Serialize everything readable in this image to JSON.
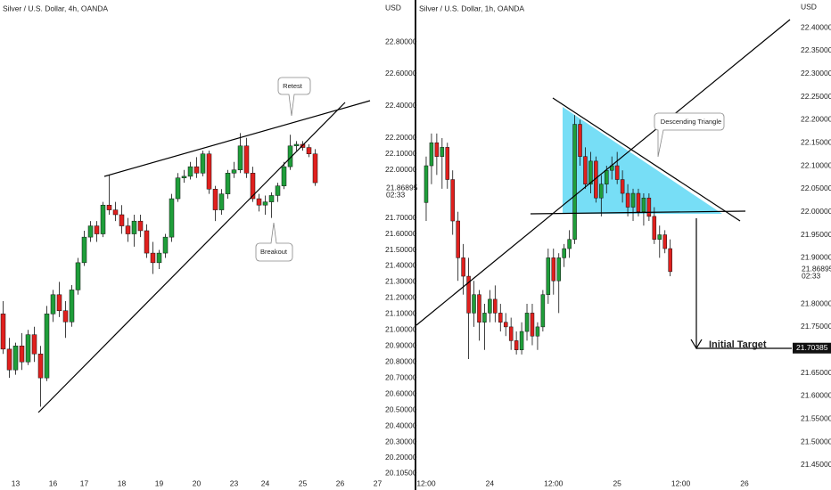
{
  "chart_data": [
    {
      "type": "candlestick",
      "title": "Silver / U.S. Dollar, 4h, OANDA",
      "y_label": "USD",
      "up_color": "#1f9e3a",
      "down_color": "#e0201e",
      "grid": false,
      "ylim": [
        20.055,
        23.062
      ],
      "yticks": [
        {
          "value": 22.8,
          "label": "22.80000"
        },
        {
          "value": 22.6,
          "label": "22.60000"
        },
        {
          "value": 22.4,
          "label": "22.40000"
        },
        {
          "value": 22.2,
          "label": "22.20000"
        },
        {
          "value": 22.1,
          "label": "22.10000"
        },
        {
          "value": 22.0,
          "label": "22.00000"
        },
        {
          "value": 21.7,
          "label": "21.70000"
        },
        {
          "value": 21.6,
          "label": "21.60000"
        },
        {
          "value": 21.5,
          "label": "21.50000"
        },
        {
          "value": 21.4,
          "label": "21.40000"
        },
        {
          "value": 21.3,
          "label": "21.30000"
        },
        {
          "value": 21.2,
          "label": "21.20000"
        },
        {
          "value": 21.1,
          "label": "21.10000"
        },
        {
          "value": 21.0,
          "label": "21.00000"
        },
        {
          "value": 20.9,
          "label": "20.90000"
        },
        {
          "value": 20.8,
          "label": "20.80000"
        },
        {
          "value": 20.7,
          "label": "20.70000"
        },
        {
          "value": 20.6,
          "label": "20.60000"
        },
        {
          "value": 20.5,
          "label": "20.50000"
        },
        {
          "value": 20.4,
          "label": "20.40000"
        },
        {
          "value": 20.3,
          "label": "20.30000"
        },
        {
          "value": 20.2,
          "label": "20.20000"
        },
        {
          "value": 20.105,
          "label": "20.10500"
        }
      ],
      "last_price": 21.86895,
      "countdown": "02:33",
      "annotations": [
        "Retest",
        "Breakout"
      ],
      "categories": [
        null,
        null,
        "13",
        null,
        null,
        null,
        null,
        null,
        "16",
        null,
        null,
        null,
        null,
        "17",
        null,
        null,
        null,
        null,
        null,
        "18",
        null,
        null,
        null,
        null,
        null,
        "19",
        null,
        null,
        null,
        null,
        null,
        "20",
        null,
        null,
        null,
        null,
        null,
        "23",
        null,
        null,
        null,
        null,
        "24",
        null,
        null,
        null,
        null,
        null,
        "25",
        null,
        null,
        null,
        null,
        null,
        "26",
        null,
        null,
        null,
        null,
        null,
        "27"
      ],
      "open": [
        21.1,
        20.88,
        20.75,
        20.9,
        20.8,
        20.97,
        20.85,
        20.7,
        21.1,
        21.22,
        21.12,
        21.05,
        21.25,
        21.42,
        21.58,
        21.65,
        21.6,
        21.78,
        21.75,
        21.72,
        21.65,
        21.6,
        21.68,
        21.62,
        21.48,
        21.42,
        21.48,
        21.58,
        21.82,
        21.95,
        21.96,
        22.02,
        21.98,
        22.1,
        21.88,
        21.75,
        21.85,
        21.98,
        22.0,
        22.15,
        21.98,
        21.82,
        21.78,
        21.8,
        21.84,
        21.9,
        22.02,
        22.15,
        22.16,
        22.14,
        22.1,
        null,
        null,
        null,
        null,
        null,
        null,
        null,
        null,
        null,
        null
      ],
      "high": [
        21.18,
        20.95,
        20.92,
        20.98,
        21.0,
        21.02,
        20.9,
        21.15,
        21.25,
        21.3,
        21.18,
        21.28,
        21.45,
        21.62,
        21.68,
        21.68,
        21.8,
        21.97,
        21.8,
        21.78,
        21.7,
        21.72,
        21.72,
        21.66,
        21.55,
        21.5,
        21.6,
        21.85,
        21.98,
        22.0,
        22.05,
        22.08,
        22.12,
        22.12,
        21.9,
        21.88,
        22.0,
        22.05,
        22.23,
        22.2,
        22.02,
        21.85,
        21.84,
        21.86,
        21.92,
        22.05,
        22.22,
        22.18,
        22.18,
        22.16,
        22.13,
        null,
        null,
        null,
        null,
        null,
        null,
        null,
        null,
        null,
        null
      ],
      "low": [
        20.85,
        20.7,
        20.72,
        20.75,
        20.78,
        20.8,
        20.52,
        20.68,
        21.05,
        21.08,
        20.95,
        21.02,
        21.22,
        21.4,
        21.55,
        21.55,
        21.58,
        21.72,
        21.68,
        21.6,
        21.55,
        21.52,
        21.58,
        21.45,
        21.35,
        21.38,
        21.45,
        21.55,
        21.8,
        21.92,
        21.94,
        21.95,
        21.96,
        21.85,
        21.68,
        21.72,
        21.82,
        21.95,
        21.98,
        21.95,
        21.8,
        21.74,
        21.72,
        21.7,
        21.8,
        21.88,
        22.0,
        22.12,
        22.12,
        22.08,
        21.9,
        null,
        null,
        null,
        null,
        null,
        null,
        null,
        null,
        null,
        null
      ],
      "close": [
        20.88,
        20.75,
        20.9,
        20.8,
        20.97,
        20.85,
        20.7,
        21.1,
        21.22,
        21.12,
        21.05,
        21.25,
        21.42,
        21.58,
        21.65,
        21.6,
        21.78,
        21.75,
        21.72,
        21.65,
        21.6,
        21.68,
        21.62,
        21.48,
        21.42,
        21.48,
        21.58,
        21.82,
        21.95,
        21.96,
        22.02,
        21.98,
        22.1,
        21.88,
        21.75,
        21.85,
        21.98,
        22.0,
        22.15,
        21.98,
        21.82,
        21.78,
        21.8,
        21.84,
        21.9,
        22.02,
        22.15,
        22.16,
        22.14,
        22.1,
        21.92,
        null,
        null,
        null,
        null,
        null,
        null,
        null,
        null,
        null,
        null
      ]
    },
    {
      "type": "candlestick",
      "title": "Silver / U.S. Dollar, 1h, OANDA",
      "y_label": "USD",
      "up_color": "#1f9e3a",
      "down_color": "#e0201e",
      "grid": false,
      "ylim": [
        21.415,
        22.46
      ],
      "yticks": [
        {
          "value": 22.4,
          "label": "22.40000"
        },
        {
          "value": 22.35,
          "label": "22.35000"
        },
        {
          "value": 22.3,
          "label": "22.30000"
        },
        {
          "value": 22.25,
          "label": "22.25000"
        },
        {
          "value": 22.2,
          "label": "22.20000"
        },
        {
          "value": 22.15,
          "label": "22.15000"
        },
        {
          "value": 22.1,
          "label": "22.10000"
        },
        {
          "value": 22.05,
          "label": "22.05000"
        },
        {
          "value": 22.0,
          "label": "22.00000"
        },
        {
          "value": 21.95,
          "label": "21.95000"
        },
        {
          "value": 21.9,
          "label": "21.90000"
        },
        {
          "value": 21.8,
          "label": "21.80000"
        },
        {
          "value": 21.75,
          "label": "21.75000"
        },
        {
          "value": 21.65,
          "label": "21.65000"
        },
        {
          "value": 21.6,
          "label": "21.60000"
        },
        {
          "value": 21.55,
          "label": "21.55000"
        },
        {
          "value": 21.5,
          "label": "21.50000"
        },
        {
          "value": 21.45,
          "label": "21.45000"
        }
      ],
      "last_price": 21.86895,
      "countdown": "02:33",
      "target_price": 21.70385,
      "annotations": [
        "Descending Triangle",
        "Initial Target"
      ],
      "categories": [
        "12:00",
        null,
        null,
        null,
        null,
        null,
        null,
        null,
        null,
        null,
        null,
        null,
        "24",
        null,
        null,
        null,
        null,
        null,
        null,
        null,
        null,
        null,
        null,
        null,
        "12:00",
        null,
        null,
        null,
        null,
        null,
        null,
        null,
        null,
        null,
        null,
        null,
        "25",
        null,
        null,
        null,
        null,
        null,
        null,
        null,
        null,
        null,
        null,
        null,
        "12:00",
        null,
        null,
        null,
        null,
        null,
        null,
        null,
        null,
        null,
        null,
        null,
        "26",
        null,
        null,
        null,
        null,
        null,
        null,
        null
      ],
      "open": [
        22.02,
        22.1,
        22.15,
        22.12,
        22.14,
        22.07,
        21.98,
        21.9,
        21.86,
        21.78,
        21.82,
        21.76,
        21.78,
        21.81,
        21.78,
        21.76,
        21.75,
        21.72,
        21.7,
        21.74,
        21.78,
        21.73,
        21.75,
        21.82,
        21.9,
        21.85,
        21.9,
        21.92,
        21.94,
        22.19,
        22.12,
        22.06,
        22.11,
        22.03,
        22.06,
        22.09,
        22.1,
        22.07,
        22.04,
        22.01,
        22.04,
        22.0,
        22.03,
        21.99,
        21.94,
        21.95,
        21.92,
        null,
        null,
        null,
        null,
        null,
        null,
        null,
        null,
        null,
        null,
        null,
        null,
        null,
        null,
        null,
        null,
        null,
        null,
        null,
        null,
        null
      ],
      "high": [
        22.12,
        22.17,
        22.17,
        22.16,
        22.15,
        22.09,
        22.0,
        21.93,
        21.9,
        21.85,
        21.83,
        21.8,
        21.83,
        21.84,
        21.8,
        21.78,
        21.77,
        21.74,
        21.76,
        21.8,
        21.8,
        21.76,
        21.83,
        21.92,
        21.92,
        21.91,
        21.93,
        21.96,
        22.21,
        22.2,
        22.14,
        22.13,
        22.12,
        22.08,
        22.1,
        22.12,
        22.13,
        22.09,
        22.06,
        22.05,
        22.05,
        22.04,
        22.04,
        22.01,
        21.97,
        21.96,
        21.94,
        null,
        null,
        null,
        null,
        null,
        null,
        null,
        null,
        null,
        null,
        null,
        null,
        null,
        null,
        null,
        null,
        null,
        null,
        null,
        null,
        null
      ],
      "low": [
        21.98,
        22.06,
        22.08,
        22.05,
        22.05,
        21.95,
        21.85,
        21.82,
        21.68,
        21.75,
        21.72,
        21.7,
        21.76,
        21.76,
        21.74,
        21.73,
        21.7,
        21.69,
        21.69,
        21.72,
        21.71,
        21.7,
        21.74,
        21.8,
        21.82,
        21.78,
        21.88,
        21.9,
        21.93,
        22.1,
        22.05,
        22.04,
        22.02,
        21.99,
        22.04,
        22.07,
        22.06,
        22.02,
        21.99,
        21.98,
        21.99,
        21.97,
        21.98,
        21.93,
        21.9,
        21.91,
        21.86,
        null,
        null,
        null,
        null,
        null,
        null,
        null,
        null,
        null,
        null,
        null,
        null,
        null,
        null,
        null,
        null,
        null,
        null,
        null,
        null,
        null
      ],
      "close": [
        22.1,
        22.15,
        22.12,
        22.14,
        22.07,
        21.98,
        21.9,
        21.86,
        21.78,
        21.82,
        21.76,
        21.78,
        21.81,
        21.78,
        21.76,
        21.75,
        21.72,
        21.7,
        21.74,
        21.78,
        21.73,
        21.75,
        21.82,
        21.9,
        21.85,
        21.9,
        21.92,
        21.94,
        22.19,
        22.12,
        22.06,
        22.11,
        22.03,
        22.06,
        22.09,
        22.1,
        22.07,
        22.04,
        22.01,
        22.04,
        22.0,
        22.03,
        21.99,
        21.94,
        21.95,
        21.92,
        21.87,
        null,
        null,
        null,
        null,
        null,
        null,
        null,
        null,
        null,
        null,
        null,
        null,
        null,
        null,
        null,
        null,
        null,
        null,
        null,
        null,
        null
      ]
    }
  ]
}
